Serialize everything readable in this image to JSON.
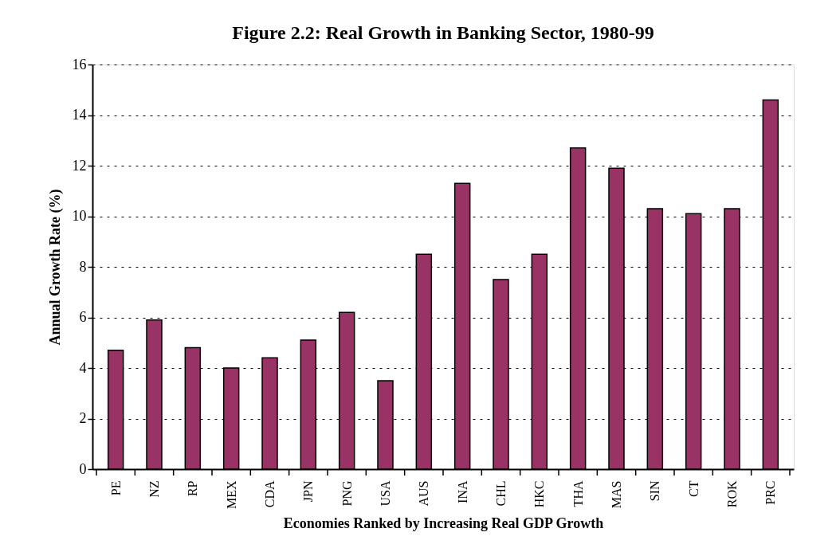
{
  "chart_data": {
    "type": "bar",
    "title": "Figure 2.2: Real Growth in Banking Sector, 1980-99",
    "xlabel": "Economies Ranked by Increasing Real GDP Growth",
    "ylabel": "Annual Growth Rate (%)",
    "categories": [
      "PE",
      "NZ",
      "RP",
      "MEX",
      "CDA",
      "JPN",
      "PNG",
      "USA",
      "AUS",
      "INA",
      "CHL",
      "HKC",
      "THA",
      "MAS",
      "SIN",
      "CT",
      "ROK",
      "PRC"
    ],
    "values": [
      4.7,
      5.9,
      4.8,
      4.0,
      4.4,
      5.1,
      6.2,
      3.5,
      8.5,
      11.3,
      7.5,
      8.5,
      12.7,
      11.9,
      10.3,
      10.1,
      10.3,
      14.6
    ],
    "color": "#993366",
    "ylim": [
      0,
      16
    ],
    "yticks": [
      0,
      2,
      4,
      6,
      8,
      10,
      12,
      14,
      16
    ],
    "grid": "y"
  }
}
